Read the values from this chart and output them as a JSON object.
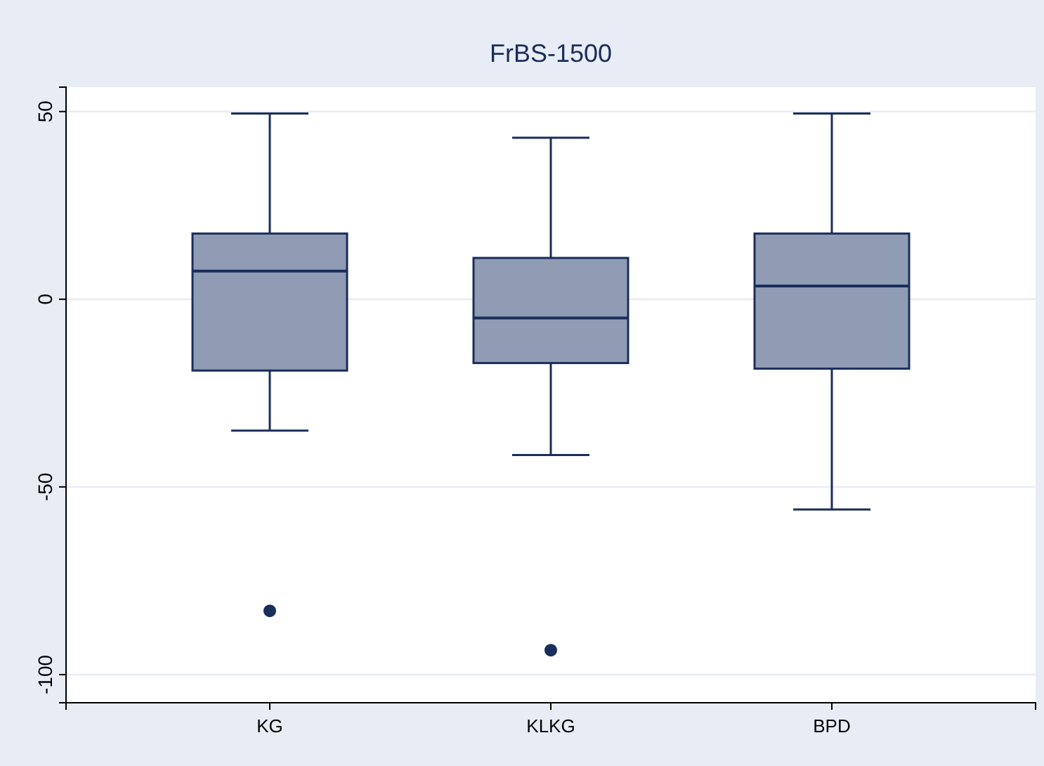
{
  "chart_data": {
    "type": "box",
    "title": "FrBS-1500",
    "categories": [
      "KG",
      "KLKG",
      "BPD"
    ],
    "boxes": [
      {
        "low": -35,
        "q1": -19,
        "median": 7.5,
        "q3": 17.5,
        "high": 49.5,
        "outliers": [
          -83
        ]
      },
      {
        "low": -41.5,
        "q1": -17,
        "median": -5,
        "q3": 11,
        "high": 43,
        "outliers": [
          -93.5
        ]
      },
      {
        "low": -56,
        "q1": -18.5,
        "median": 3.5,
        "q3": 17.5,
        "high": 49.5
      }
    ],
    "color": "#8f9cb4",
    "ylim": [
      -107.5,
      56.5
    ],
    "yticks": [
      -100,
      -50,
      0,
      50
    ],
    "grid": "y"
  }
}
